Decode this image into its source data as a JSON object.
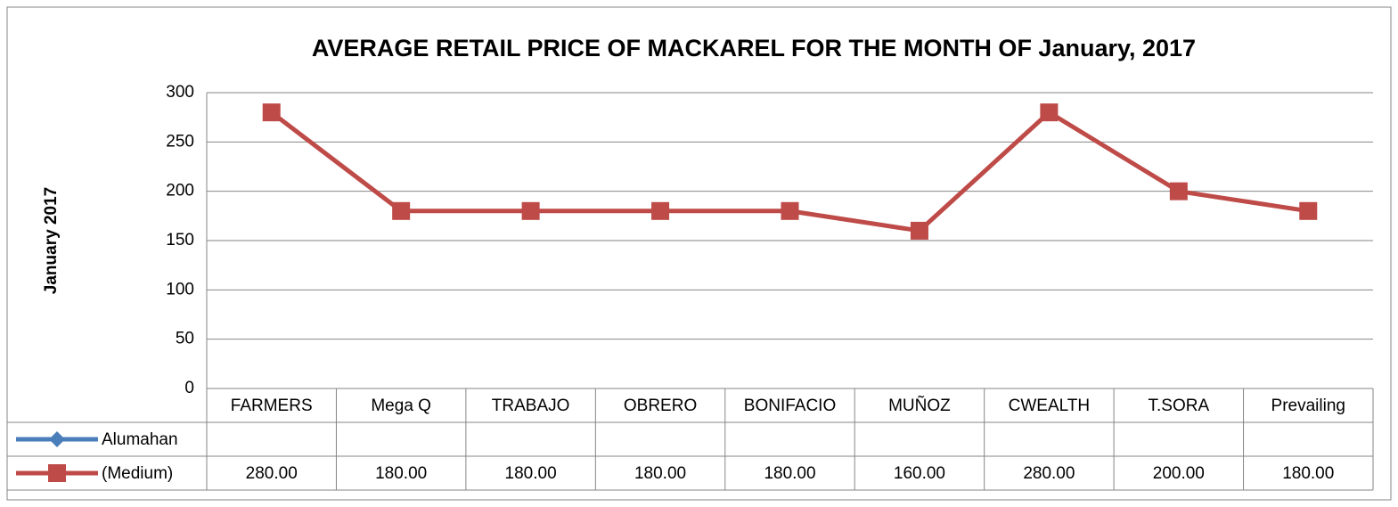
{
  "chart_data": {
    "type": "line",
    "title": "AVERAGE RETAIL PRICE OF MACKAREL FOR THE MONTH OF January, 2017",
    "y_label": "January 2017",
    "categories": [
      "FARMERS",
      "Mega Q",
      "TRABAJO",
      "OBRERO",
      "BONIFACIO",
      "MUÑOZ",
      "CWEALTH",
      "T.SORA",
      "Prevailing"
    ],
    "series": [
      {
        "name": "Alumahan",
        "color": "#4a7ebb",
        "values": [
          null,
          null,
          null,
          null,
          null,
          null,
          null,
          null,
          null
        ]
      },
      {
        "name": "(Medium)",
        "color": "#be4b48",
        "values": [
          280,
          180,
          180,
          180,
          180,
          160,
          280,
          200,
          180
        ],
        "value_labels": [
          "280.00",
          "180.00",
          "180.00",
          "180.00",
          "180.00",
          "160.00",
          "280.00",
          "200.00",
          "180.00"
        ]
      }
    ],
    "ylim": [
      0,
      300
    ],
    "yticks": [
      0,
      50,
      100,
      150,
      200,
      250,
      300
    ],
    "grid": true,
    "legend": "data-table"
  }
}
